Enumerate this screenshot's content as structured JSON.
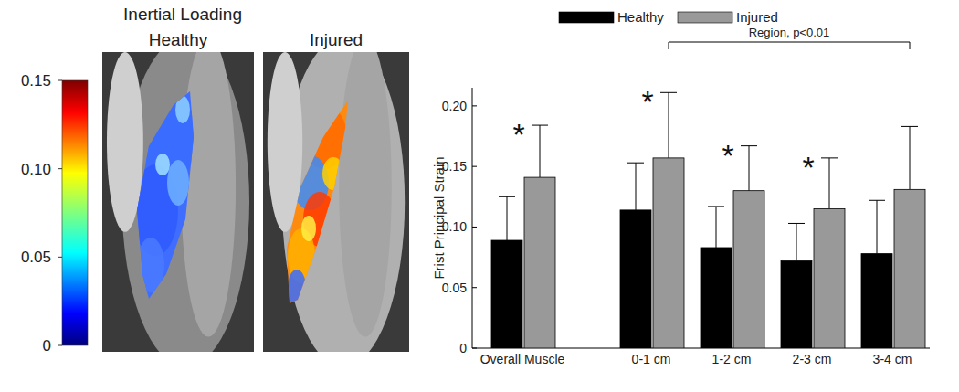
{
  "chart_data": [
    {
      "type": "heatmap",
      "title": "Inertial Loading",
      "panels": [
        "Healthy",
        "Injured"
      ],
      "colorbar": {
        "range": [
          0,
          0.15
        ],
        "ticks": [
          0,
          0.05,
          {
            "value": 0.1,
            "label": "0.10"
          },
          0.15
        ]
      }
    },
    {
      "type": "bar",
      "y_label": "Frist Principal Strain",
      "categories": [
        "Overall Muscle",
        "0-1 cm",
        "1-2 cm",
        "2-3 cm",
        "3-4 cm"
      ],
      "series": [
        {
          "name": "Healthy",
          "color": "#000000",
          "values": [
            0.089,
            0.114,
            0.083,
            0.072,
            0.078
          ],
          "errors": [
            0.036,
            0.039,
            0.034,
            0.031,
            0.044
          ]
        },
        {
          "name": "Injured",
          "color": "#999999",
          "values": [
            0.141,
            0.157,
            0.13,
            0.115,
            0.131
          ],
          "errors": [
            0.043,
            0.054,
            0.037,
            0.042,
            0.052
          ]
        }
      ],
      "ylim": [
        0,
        0.215
      ],
      "yticks": [
        0,
        0.05,
        {
          "value": 0.1,
          "label": "0.10"
        },
        0.15,
        {
          "value": 0.2,
          "label": "0.20"
        }
      ],
      "legend": "top",
      "annotations": [
        {
          "text": "*",
          "category": "Overall Muscle"
        },
        {
          "text": "*",
          "category": "0-1 cm"
        },
        {
          "text": "*",
          "category": "1-2 cm"
        },
        {
          "text": "*",
          "category": "2-3 cm"
        },
        {
          "text": "Region, p<0.01",
          "from": "0-1 cm",
          "to": "3-4 cm"
        }
      ]
    }
  ]
}
